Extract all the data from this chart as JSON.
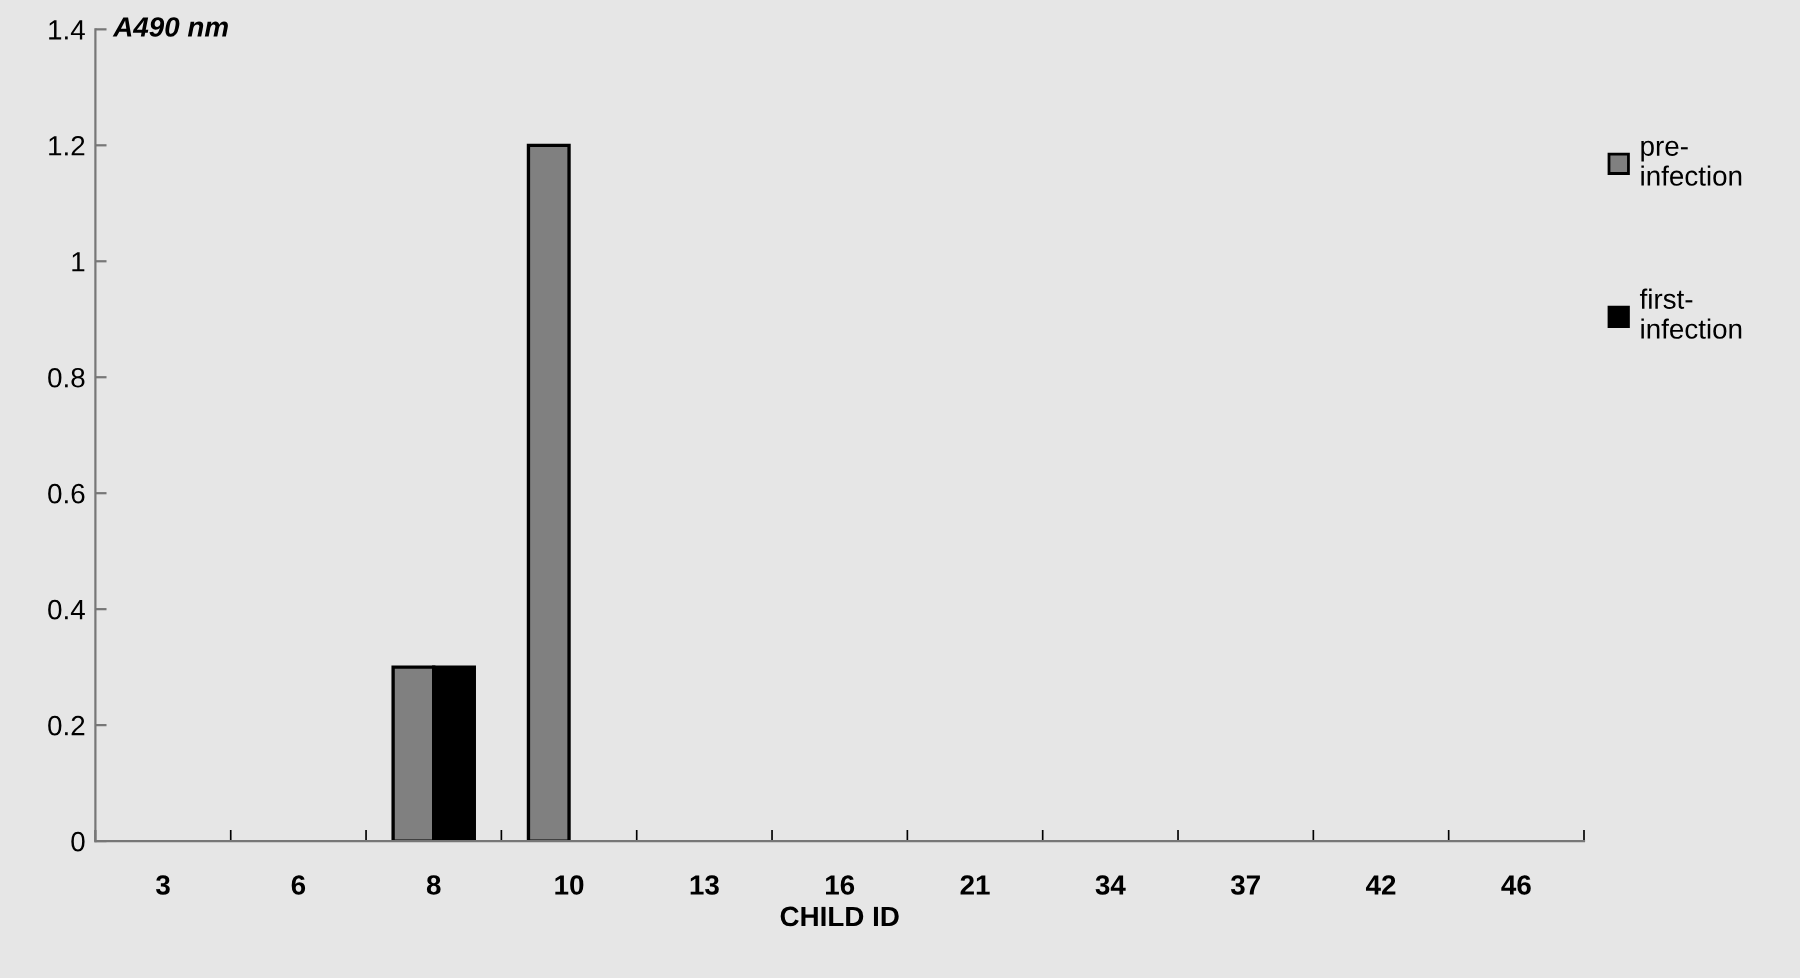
{
  "chart_data": {
    "type": "bar",
    "xlabel": "CHILD ID",
    "ylabel": "A490 nm",
    "categories": [
      "3",
      "6",
      "8",
      "10",
      "13",
      "16",
      "21",
      "34",
      "37",
      "42",
      "46"
    ],
    "series": [
      {
        "name": "pre-infection",
        "color": "#808080",
        "values": [
          0,
          0,
          0.3,
          1.2,
          0,
          0,
          0,
          0,
          0,
          0,
          0
        ]
      },
      {
        "name": "first-infection",
        "color": "#000000",
        "values": [
          0,
          0,
          0.3,
          0,
          0,
          0,
          0,
          0,
          0,
          0,
          0
        ]
      }
    ],
    "ylim": [
      0,
      1.4
    ],
    "yticks": [
      0,
      0.2,
      0.4,
      0.6,
      0.8,
      1,
      1.2,
      1.4
    ],
    "grid": false,
    "legend": "right"
  }
}
